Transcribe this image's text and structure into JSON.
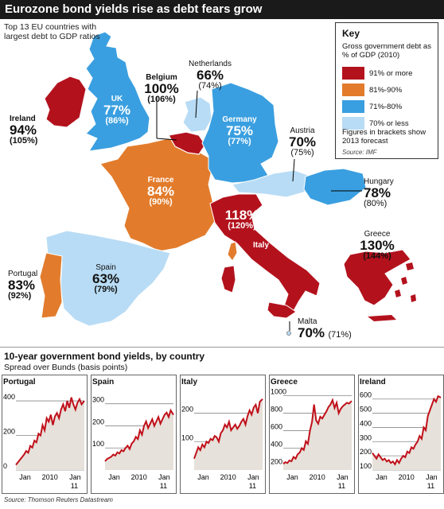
{
  "title": "Eurozone bond yields rise as debt fears grow",
  "map": {
    "subtitle": "Top 13 EU countries with largest debt to GDP ratios",
    "key": {
      "title": "Key",
      "description": "Gross government debt as % of GDP (2010)",
      "items": [
        {
          "label": "91% or more",
          "color": "#b3121d"
        },
        {
          "label": "81%-90%",
          "color": "#e27c2c"
        },
        {
          "label": "71%-80%",
          "color": "#3a9fe0"
        },
        {
          "label": "70% or less",
          "color": "#b8dcf5"
        }
      ],
      "note": "Figures in brackets show 2013 forecast",
      "source": "Source: IMF"
    },
    "countries": [
      {
        "name": "Ireland",
        "pct": "94%",
        "forecast": "(105%)"
      },
      {
        "name": "UK",
        "pct": "77%",
        "forecast": "(86%)"
      },
      {
        "name": "Belgium",
        "pct": "100%",
        "forecast": "(106%)"
      },
      {
        "name": "Netherlands",
        "pct": "66%",
        "forecast": "(74%)"
      },
      {
        "name": "Germany",
        "pct": "75%",
        "forecast": "(77%)"
      },
      {
        "name": "Austria",
        "pct": "70%",
        "forecast": "(75%)"
      },
      {
        "name": "Hungary",
        "pct": "78%",
        "forecast": "(80%)"
      },
      {
        "name": "France",
        "pct": "84%",
        "forecast": "(90%)"
      },
      {
        "name": "Italy",
        "pct": "118%",
        "forecast": "(120%)"
      },
      {
        "name": "Greece",
        "pct": "130%",
        "forecast": "(144%)"
      },
      {
        "name": "Spain",
        "pct": "63%",
        "forecast": "(79%)"
      },
      {
        "name": "Portugal",
        "pct": "83%",
        "forecast": "(92%)"
      },
      {
        "name": "Malta",
        "pct": "70%",
        "forecast": "(71%)"
      }
    ]
  },
  "charts_section": {
    "title": "10-year government bond yields, by country",
    "subtitle": "Spread over Bunds (basis points)",
    "source": "Source: Thomson Reuters Datastream"
  },
  "chart_data": [
    {
      "type": "line",
      "title": "Portugal",
      "color": "#c0101a",
      "x": [
        0,
        0.03,
        0.06,
        0.09,
        0.12,
        0.15,
        0.18,
        0.21,
        0.24,
        0.27,
        0.3,
        0.33,
        0.36,
        0.39,
        0.42,
        0.45,
        0.48,
        0.51,
        0.54,
        0.57,
        0.6,
        0.63,
        0.66,
        0.69,
        0.72,
        0.75,
        0.78,
        0.81,
        0.84,
        0.87,
        0.9,
        0.93,
        0.96,
        1.0
      ],
      "y": [
        30,
        45,
        60,
        75,
        90,
        110,
        100,
        140,
        130,
        170,
        160,
        210,
        200,
        260,
        230,
        300,
        280,
        320,
        260,
        310,
        330,
        300,
        350,
        380,
        340,
        400,
        360,
        420,
        380,
        350,
        390,
        410,
        380,
        400
      ],
      "xticks": [
        "Jan",
        "2010",
        "Jan",
        "11"
      ],
      "yticks": [
        0,
        200,
        400
      ],
      "ylim": [
        0,
        460
      ]
    },
    {
      "type": "line",
      "title": "Spain",
      "color": "#c0101a",
      "x": [
        0,
        0.03,
        0.06,
        0.09,
        0.12,
        0.15,
        0.18,
        0.21,
        0.24,
        0.27,
        0.3,
        0.33,
        0.36,
        0.39,
        0.42,
        0.45,
        0.48,
        0.51,
        0.54,
        0.57,
        0.6,
        0.63,
        0.66,
        0.69,
        0.72,
        0.75,
        0.78,
        0.81,
        0.84,
        0.87,
        0.9,
        0.93,
        0.96,
        1.0
      ],
      "y": [
        40,
        50,
        55,
        60,
        70,
        65,
        80,
        75,
        90,
        85,
        100,
        110,
        95,
        120,
        130,
        150,
        140,
        180,
        160,
        200,
        220,
        190,
        210,
        230,
        200,
        220,
        240,
        210,
        230,
        250,
        260,
        240,
        270,
        250
      ],
      "xticks": [
        "Jan",
        "2010",
        "Jan",
        "11"
      ],
      "yticks": [
        100,
        200,
        300
      ],
      "ylim": [
        0,
        360
      ]
    },
    {
      "type": "line",
      "title": "Italy",
      "color": "#c0101a",
      "x": [
        0,
        0.03,
        0.06,
        0.09,
        0.12,
        0.15,
        0.18,
        0.21,
        0.24,
        0.27,
        0.3,
        0.33,
        0.36,
        0.39,
        0.42,
        0.45,
        0.48,
        0.51,
        0.54,
        0.57,
        0.6,
        0.63,
        0.66,
        0.69,
        0.72,
        0.75,
        0.78,
        0.81,
        0.84,
        0.87,
        0.9,
        0.93,
        0.96,
        1.0
      ],
      "y": [
        40,
        60,
        80,
        70,
        90,
        80,
        100,
        95,
        110,
        105,
        120,
        115,
        100,
        130,
        140,
        160,
        150,
        170,
        140,
        150,
        160,
        145,
        155,
        170,
        180,
        160,
        190,
        210,
        195,
        220,
        230,
        200,
        240,
        250
      ],
      "xticks": [
        "Jan",
        "2010",
        "Jan",
        "11"
      ],
      "yticks": [
        100,
        200
      ],
      "ylim": [
        0,
        280
      ]
    },
    {
      "type": "line",
      "title": "Greece",
      "color": "#c0101a",
      "x": [
        0,
        0.03,
        0.06,
        0.09,
        0.12,
        0.15,
        0.18,
        0.21,
        0.24,
        0.27,
        0.3,
        0.33,
        0.36,
        0.39,
        0.42,
        0.45,
        0.48,
        0.51,
        0.54,
        0.57,
        0.6,
        0.63,
        0.66,
        0.69,
        0.72,
        0.75,
        0.78,
        0.81,
        0.84,
        0.87,
        0.9,
        0.93,
        0.96,
        1.0
      ],
      "y": [
        220,
        240,
        230,
        260,
        250,
        300,
        280,
        330,
        350,
        400,
        380,
        480,
        450,
        600,
        700,
        900,
        720,
        680,
        760,
        740,
        780,
        820,
        870,
        900,
        950,
        860,
        920,
        800,
        850,
        880,
        900,
        920,
        910,
        940
      ],
      "xticks": [
        "Jan",
        "2010",
        "Jan",
        "11"
      ],
      "yticks": [
        200,
        400,
        600,
        800,
        1000
      ],
      "ylim": [
        150,
        1060
      ]
    },
    {
      "type": "line",
      "title": "Ireland",
      "color": "#c0101a",
      "x": [
        0,
        0.03,
        0.06,
        0.09,
        0.12,
        0.15,
        0.18,
        0.21,
        0.24,
        0.27,
        0.3,
        0.33,
        0.36,
        0.39,
        0.42,
        0.45,
        0.48,
        0.51,
        0.54,
        0.57,
        0.6,
        0.63,
        0.66,
        0.69,
        0.72,
        0.75,
        0.78,
        0.81,
        0.84,
        0.87,
        0.9,
        0.93,
        0.96,
        1.0
      ],
      "y": [
        220,
        200,
        180,
        210,
        190,
        170,
        180,
        160,
        170,
        150,
        160,
        140,
        170,
        150,
        180,
        200,
        190,
        230,
        220,
        260,
        250,
        280,
        300,
        340,
        320,
        400,
        380,
        480,
        520,
        560,
        600,
        580,
        620,
        610
      ],
      "xticks": [
        "Jan",
        "2010",
        "Jan",
        "11"
      ],
      "yticks": [
        100,
        200,
        300,
        400,
        500,
        600
      ],
      "ylim": [
        100,
        660
      ]
    }
  ]
}
